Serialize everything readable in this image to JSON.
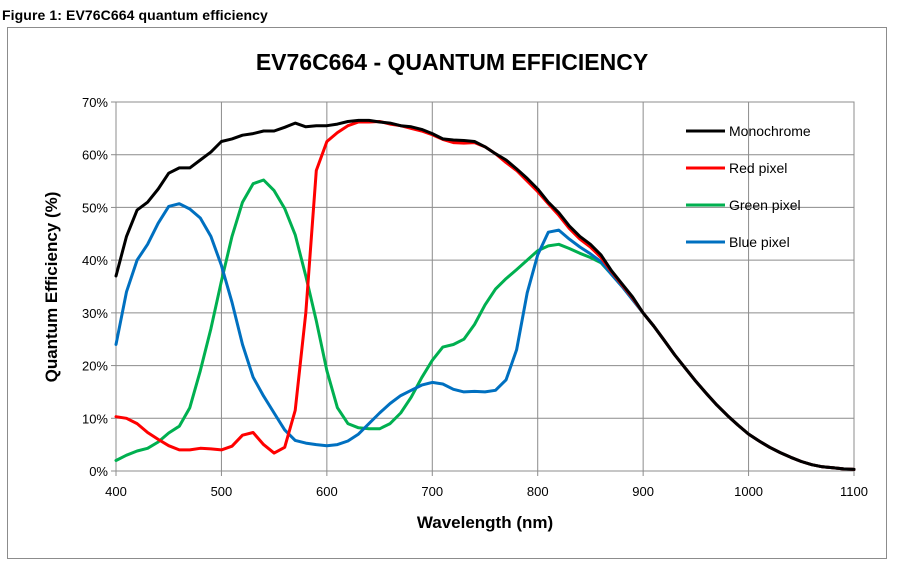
{
  "caption": "Figure 1: EV76C664 quantum efficiency",
  "chart_data": {
    "type": "line",
    "title": "EV76C664 - QUANTUM EFFICIENCY",
    "xlabel": "Wavelength (nm)",
    "ylabel": "Quantum Efficiency (%)",
    "xlim": [
      400,
      1100
    ],
    "ylim": [
      0,
      70
    ],
    "xticks": [
      "400",
      "500",
      "600",
      "700",
      "800",
      "900",
      "1000",
      "1100"
    ],
    "yticks": [
      "0%",
      "10%",
      "20%",
      "30%",
      "40%",
      "50%",
      "60%",
      "70%"
    ],
    "grid": true,
    "legend_position": "top-right",
    "series": [
      {
        "name": "Monochrome",
        "color": "#000000",
        "points": [
          [
            400,
            37
          ],
          [
            410,
            44.5
          ],
          [
            420,
            49.5
          ],
          [
            430,
            51
          ],
          [
            440,
            53.5
          ],
          [
            450,
            56.5
          ],
          [
            460,
            57.5
          ],
          [
            470,
            57.5
          ],
          [
            480,
            59
          ],
          [
            490,
            60.5
          ],
          [
            500,
            62.5
          ],
          [
            510,
            63
          ],
          [
            520,
            63.7
          ],
          [
            530,
            64
          ],
          [
            540,
            64.5
          ],
          [
            550,
            64.5
          ],
          [
            560,
            65.2
          ],
          [
            570,
            66
          ],
          [
            580,
            65.3
          ],
          [
            590,
            65.5
          ],
          [
            600,
            65.5
          ],
          [
            610,
            65.8
          ],
          [
            620,
            66.3
          ],
          [
            630,
            66.5
          ],
          [
            640,
            66.5
          ],
          [
            650,
            66.2
          ],
          [
            660,
            66
          ],
          [
            670,
            65.5
          ],
          [
            680,
            65.3
          ],
          [
            690,
            64.8
          ],
          [
            700,
            64
          ],
          [
            710,
            63
          ],
          [
            720,
            62.8
          ],
          [
            730,
            62.7
          ],
          [
            740,
            62.5
          ],
          [
            750,
            61.5
          ],
          [
            760,
            60.2
          ],
          [
            770,
            59
          ],
          [
            780,
            57.3
          ],
          [
            790,
            55.5
          ],
          [
            800,
            53.5
          ],
          [
            810,
            51
          ],
          [
            820,
            49
          ],
          [
            830,
            46.5
          ],
          [
            840,
            44.5
          ],
          [
            850,
            43
          ],
          [
            860,
            41
          ],
          [
            870,
            38
          ],
          [
            880,
            35.5
          ],
          [
            890,
            33
          ],
          [
            900,
            30
          ],
          [
            910,
            27.5
          ],
          [
            920,
            24.8
          ],
          [
            930,
            22
          ],
          [
            940,
            19.5
          ],
          [
            950,
            17
          ],
          [
            960,
            14.7
          ],
          [
            970,
            12.5
          ],
          [
            980,
            10.5
          ],
          [
            990,
            8.7
          ],
          [
            1000,
            7
          ],
          [
            1010,
            5.7
          ],
          [
            1020,
            4.5
          ],
          [
            1030,
            3.5
          ],
          [
            1040,
            2.6
          ],
          [
            1050,
            1.8
          ],
          [
            1060,
            1.2
          ],
          [
            1070,
            0.8
          ],
          [
            1080,
            0.6
          ],
          [
            1090,
            0.4
          ],
          [
            1100,
            0.3
          ]
        ]
      },
      {
        "name": "Red pixel",
        "color": "#ff0000",
        "points": [
          [
            400,
            10.3
          ],
          [
            410,
            10
          ],
          [
            420,
            9
          ],
          [
            430,
            7.3
          ],
          [
            440,
            6
          ],
          [
            450,
            4.8
          ],
          [
            460,
            4
          ],
          [
            470,
            4
          ],
          [
            480,
            4.3
          ],
          [
            490,
            4.2
          ],
          [
            500,
            4
          ],
          [
            510,
            4.7
          ],
          [
            520,
            6.8
          ],
          [
            530,
            7.3
          ],
          [
            540,
            5
          ],
          [
            550,
            3.4
          ],
          [
            560,
            4.5
          ],
          [
            570,
            11.5
          ],
          [
            580,
            30
          ],
          [
            590,
            57
          ],
          [
            600,
            62.5
          ],
          [
            610,
            64.2
          ],
          [
            620,
            65.5
          ],
          [
            630,
            66.2
          ],
          [
            640,
            66.2
          ],
          [
            650,
            66.3
          ],
          [
            660,
            65.8
          ],
          [
            670,
            65.5
          ],
          [
            680,
            65
          ],
          [
            690,
            64.5
          ],
          [
            700,
            63.8
          ],
          [
            710,
            62.9
          ],
          [
            720,
            62.3
          ],
          [
            730,
            62.2
          ],
          [
            740,
            62.3
          ],
          [
            750,
            61.5
          ],
          [
            760,
            60.2
          ],
          [
            770,
            58.5
          ],
          [
            780,
            57
          ],
          [
            790,
            55
          ],
          [
            800,
            53
          ],
          [
            810,
            50.7
          ],
          [
            820,
            48.5
          ],
          [
            830,
            46
          ],
          [
            840,
            44
          ],
          [
            850,
            42.5
          ],
          [
            860,
            40.5
          ],
          [
            870,
            37.8
          ],
          [
            880,
            35.3
          ],
          [
            890,
            32.8
          ],
          [
            900,
            30
          ],
          [
            910,
            27.5
          ],
          [
            920,
            24.8
          ],
          [
            930,
            22
          ],
          [
            940,
            19.5
          ],
          [
            950,
            17
          ],
          [
            960,
            14.7
          ],
          [
            970,
            12.5
          ],
          [
            980,
            10.5
          ],
          [
            990,
            8.7
          ],
          [
            1000,
            7
          ],
          [
            1010,
            5.7
          ],
          [
            1020,
            4.5
          ],
          [
            1030,
            3.5
          ],
          [
            1040,
            2.6
          ],
          [
            1050,
            1.8
          ],
          [
            1060,
            1.2
          ],
          [
            1070,
            0.8
          ],
          [
            1080,
            0.6
          ],
          [
            1090,
            0.4
          ],
          [
            1100,
            0.3
          ]
        ]
      },
      {
        "name": "Green pixel",
        "color": "#00b050",
        "points": [
          [
            400,
            2
          ],
          [
            410,
            3
          ],
          [
            420,
            3.8
          ],
          [
            430,
            4.3
          ],
          [
            440,
            5.5
          ],
          [
            450,
            7.2
          ],
          [
            460,
            8.5
          ],
          [
            470,
            12
          ],
          [
            480,
            19
          ],
          [
            490,
            27
          ],
          [
            500,
            36
          ],
          [
            510,
            44.5
          ],
          [
            520,
            51
          ],
          [
            530,
            54.5
          ],
          [
            540,
            55.2
          ],
          [
            550,
            53.2
          ],
          [
            560,
            49.8
          ],
          [
            570,
            44.8
          ],
          [
            580,
            37
          ],
          [
            590,
            28.5
          ],
          [
            600,
            19
          ],
          [
            610,
            12
          ],
          [
            620,
            9
          ],
          [
            630,
            8.2
          ],
          [
            640,
            8
          ],
          [
            650,
            8
          ],
          [
            660,
            9
          ],
          [
            670,
            11
          ],
          [
            680,
            14
          ],
          [
            690,
            17.7
          ],
          [
            700,
            21
          ],
          [
            710,
            23.5
          ],
          [
            720,
            24
          ],
          [
            730,
            25
          ],
          [
            740,
            27.8
          ],
          [
            750,
            31.5
          ],
          [
            760,
            34.5
          ],
          [
            770,
            36.5
          ],
          [
            780,
            38.2
          ],
          [
            790,
            40
          ],
          [
            800,
            41.8
          ],
          [
            810,
            42.7
          ],
          [
            820,
            43
          ],
          [
            830,
            42.2
          ],
          [
            840,
            41.3
          ],
          [
            850,
            40.5
          ],
          [
            860,
            39.5
          ],
          [
            870,
            37.3
          ],
          [
            880,
            35
          ],
          [
            890,
            32.5
          ],
          [
            900,
            30
          ],
          [
            910,
            27.5
          ],
          [
            920,
            24.8
          ],
          [
            930,
            22
          ],
          [
            940,
            19.5
          ],
          [
            950,
            17
          ],
          [
            960,
            14.7
          ],
          [
            970,
            12.5
          ],
          [
            980,
            10.5
          ],
          [
            990,
            8.7
          ],
          [
            1000,
            7
          ],
          [
            1010,
            5.7
          ],
          [
            1020,
            4.5
          ],
          [
            1030,
            3.5
          ],
          [
            1040,
            2.6
          ],
          [
            1050,
            1.8
          ],
          [
            1060,
            1.2
          ],
          [
            1070,
            0.8
          ],
          [
            1080,
            0.6
          ],
          [
            1090,
            0.4
          ],
          [
            1100,
            0.3
          ]
        ]
      },
      {
        "name": "Blue pixel",
        "color": "#0070c0",
        "points": [
          [
            400,
            24
          ],
          [
            410,
            34
          ],
          [
            420,
            40
          ],
          [
            430,
            43
          ],
          [
            440,
            47
          ],
          [
            450,
            50.2
          ],
          [
            460,
            50.7
          ],
          [
            470,
            49.7
          ],
          [
            480,
            48
          ],
          [
            490,
            44.5
          ],
          [
            500,
            39
          ],
          [
            510,
            32
          ],
          [
            520,
            24
          ],
          [
            530,
            17.8
          ],
          [
            540,
            14.2
          ],
          [
            550,
            11
          ],
          [
            560,
            7.8
          ],
          [
            570,
            5.8
          ],
          [
            580,
            5.3
          ],
          [
            590,
            5
          ],
          [
            600,
            4.8
          ],
          [
            610,
            5
          ],
          [
            620,
            5.7
          ],
          [
            630,
            7
          ],
          [
            640,
            9
          ],
          [
            650,
            11
          ],
          [
            660,
            12.8
          ],
          [
            670,
            14.3
          ],
          [
            680,
            15.3
          ],
          [
            690,
            16.3
          ],
          [
            700,
            16.8
          ],
          [
            710,
            16.5
          ],
          [
            720,
            15.5
          ],
          [
            730,
            15
          ],
          [
            740,
            15.1
          ],
          [
            750,
            15
          ],
          [
            760,
            15.3
          ],
          [
            770,
            17.3
          ],
          [
            780,
            23
          ],
          [
            790,
            33.8
          ],
          [
            800,
            41
          ],
          [
            810,
            45.3
          ],
          [
            820,
            45.7
          ],
          [
            830,
            44
          ],
          [
            840,
            42.5
          ],
          [
            850,
            41.2
          ],
          [
            860,
            39.7
          ],
          [
            870,
            37.3
          ],
          [
            880,
            35
          ],
          [
            890,
            32.5
          ],
          [
            900,
            30
          ],
          [
            910,
            27.5
          ],
          [
            920,
            24.8
          ],
          [
            930,
            22
          ],
          [
            940,
            19.5
          ],
          [
            950,
            17
          ],
          [
            960,
            14.7
          ],
          [
            970,
            12.5
          ],
          [
            980,
            10.5
          ],
          [
            990,
            8.7
          ],
          [
            1000,
            7
          ],
          [
            1010,
            5.7
          ],
          [
            1020,
            4.5
          ],
          [
            1030,
            3.5
          ],
          [
            1040,
            2.6
          ],
          [
            1050,
            1.8
          ],
          [
            1060,
            1.2
          ],
          [
            1070,
            0.8
          ],
          [
            1080,
            0.6
          ],
          [
            1090,
            0.4
          ],
          [
            1100,
            0.3
          ]
        ]
      }
    ]
  }
}
